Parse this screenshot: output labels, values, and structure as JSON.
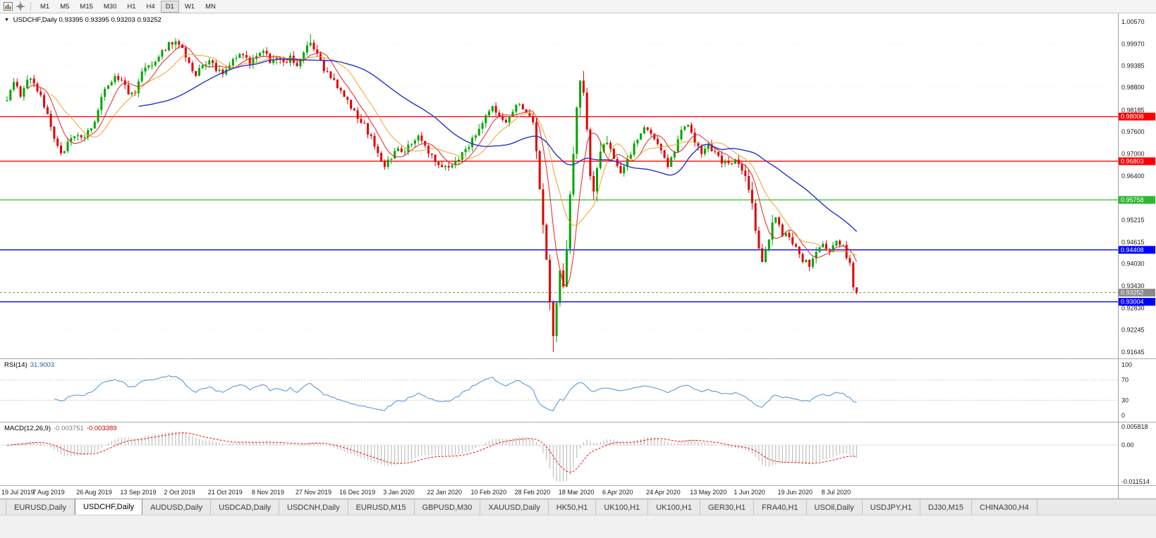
{
  "toolbar": {
    "icons": [
      {
        "name": "chart-window-icon"
      },
      {
        "name": "crosshair-icon"
      }
    ],
    "timeframes": [
      {
        "label": "M1",
        "active": false
      },
      {
        "label": "M5",
        "active": false
      },
      {
        "label": "M15",
        "active": false
      },
      {
        "label": "M30",
        "active": false
      },
      {
        "label": "H1",
        "active": false
      },
      {
        "label": "H4",
        "active": false
      },
      {
        "label": "D1",
        "active": true
      },
      {
        "label": "W1",
        "active": false
      },
      {
        "label": "MN",
        "active": false
      }
    ]
  },
  "chart_header": {
    "symbol": "USDCHF,Daily",
    "ohlc": "0.93395 0.93395 0.93203 0.93252"
  },
  "chart_data": {
    "type": "candlestick",
    "title": "USDCHF,Daily",
    "y_range": [
      0.91645,
      1.0057
    ],
    "num_candles": 253,
    "candles_per_label": 13,
    "up_color": "#00a500",
    "down_color": "#e00000",
    "price_axis_labels": [
      "1.00570",
      "0.99970",
      "0.99385",
      "0.98800",
      "0.98185",
      "0.97600",
      "0.97000",
      "0.96400",
      "0.95800",
      "0.95215",
      "0.94615",
      "0.94030",
      "0.93430",
      "0.92830",
      "0.92245",
      "0.91645"
    ],
    "date_labels": [
      "19 Jul 2019",
      "7 Aug 2019",
      "26 Aug 2019",
      "13 Sep 2019",
      "2 Oct 2019",
      "21 Oct 2019",
      "8 Nov 2019",
      "27 Nov 2019",
      "16 Dec 2019",
      "3 Jan 2020",
      "22 Jan 2020",
      "10 Feb 2020",
      "28 Feb 2020",
      "18 Mar 2020",
      "6 Apr 2020",
      "24 Apr 2020",
      "13 May 2020",
      "1 Jun 2020",
      "19 Jun 2020",
      "8 Jul 2020"
    ],
    "horizontal_lines": [
      {
        "price": 0.98008,
        "label": "0.98008",
        "color": "#ff0000"
      },
      {
        "price": 0.96803,
        "label": "0.96803",
        "color": "#ff0000"
      },
      {
        "price": 0.95758,
        "label": "0.95758",
        "color": "#2db82d"
      },
      {
        "price": 0.94408,
        "label": "0.94408",
        "color": "#0000ff"
      },
      {
        "price": 0.93004,
        "label": "0.93004",
        "color": "#0000ff"
      }
    ],
    "current_price": {
      "value": 0.93252,
      "label": "0.93252"
    },
    "last_candle": {
      "open": 0.93395,
      "high": 0.93395,
      "low": 0.93203,
      "close": 0.93252
    },
    "moving_averages": [
      {
        "period": 7,
        "color": "#e42222",
        "width": 1
      },
      {
        "period": 14,
        "color": "#efa12c",
        "width": 1
      },
      {
        "period": 40,
        "color": "#2334cc",
        "width": 1.4
      }
    ],
    "close_anchors": [
      [
        0,
        0.9852
      ],
      [
        2,
        0.9888
      ],
      [
        4,
        0.9862
      ],
      [
        6,
        0.9906
      ],
      [
        8,
        0.9892
      ],
      [
        10,
        0.9858
      ],
      [
        12,
        0.98
      ],
      [
        14,
        0.9745
      ],
      [
        16,
        0.9702
      ],
      [
        18,
        0.9726
      ],
      [
        20,
        0.9748
      ],
      [
        22,
        0.9738
      ],
      [
        24,
        0.9762
      ],
      [
        26,
        0.9786
      ],
      [
        28,
        0.9848
      ],
      [
        30,
        0.9888
      ],
      [
        32,
        0.991
      ],
      [
        34,
        0.9896
      ],
      [
        36,
        0.9862
      ],
      [
        38,
        0.9872
      ],
      [
        40,
        0.9916
      ],
      [
        42,
        0.9936
      ],
      [
        44,
        0.9956
      ],
      [
        46,
        0.9976
      ],
      [
        48,
        0.9998
      ],
      [
        50,
        1.0004
      ],
      [
        52,
        0.9986
      ],
      [
        54,
        0.9942
      ],
      [
        56,
        0.9912
      ],
      [
        58,
        0.994
      ],
      [
        60,
        0.9956
      ],
      [
        62,
        0.993
      ],
      [
        64,
        0.9912
      ],
      [
        66,
        0.994
      ],
      [
        68,
        0.9958
      ],
      [
        70,
        0.9972
      ],
      [
        72,
        0.994
      ],
      [
        74,
        0.9958
      ],
      [
        76,
        0.9986
      ],
      [
        78,
        0.995
      ],
      [
        80,
        0.9966
      ],
      [
        82,
        0.994
      ],
      [
        84,
        0.9958
      ],
      [
        86,
        0.9942
      ],
      [
        88,
        0.9972
      ],
      [
        90,
        1.0
      ],
      [
        92,
        0.9968
      ],
      [
        94,
        0.9928
      ],
      [
        96,
        0.9906
      ],
      [
        98,
        0.988
      ],
      [
        100,
        0.9852
      ],
      [
        102,
        0.983
      ],
      [
        104,
        0.9792
      ],
      [
        106,
        0.9776
      ],
      [
        108,
        0.9742
      ],
      [
        110,
        0.9706
      ],
      [
        112,
        0.9668
      ],
      [
        114,
        0.9692
      ],
      [
        116,
        0.9716
      ],
      [
        118,
        0.9708
      ],
      [
        120,
        0.9728
      ],
      [
        122,
        0.9748
      ],
      [
        124,
        0.9722
      ],
      [
        126,
        0.9692
      ],
      [
        128,
        0.9668
      ],
      [
        130,
        0.966
      ],
      [
        132,
        0.9672
      ],
      [
        134,
        0.969
      ],
      [
        136,
        0.9712
      ],
      [
        138,
        0.9738
      ],
      [
        140,
        0.9772
      ],
      [
        142,
        0.98
      ],
      [
        144,
        0.9822
      ],
      [
        146,
        0.9808
      ],
      [
        148,
        0.9782
      ],
      [
        150,
        0.9822
      ],
      [
        152,
        0.9838
      ],
      [
        154,
        0.9812
      ],
      [
        156,
        0.9782
      ],
      [
        157,
        0.97
      ],
      [
        158,
        0.961
      ],
      [
        159,
        0.952
      ],
      [
        160,
        0.94
      ],
      [
        161,
        0.929
      ],
      [
        162,
        0.9218
      ],
      [
        163,
        0.931
      ],
      [
        164,
        0.9388
      ],
      [
        165,
        0.9352
      ],
      [
        166,
        0.9458
      ],
      [
        167,
        0.958
      ],
      [
        168,
        0.97
      ],
      [
        169,
        0.9822
      ],
      [
        170,
        0.9895
      ],
      [
        171,
        0.9862
      ],
      [
        172,
        0.9758
      ],
      [
        173,
        0.9648
      ],
      [
        174,
        0.9608
      ],
      [
        175,
        0.9656
      ],
      [
        176,
        0.97
      ],
      [
        178,
        0.9728
      ],
      [
        180,
        0.969
      ],
      [
        182,
        0.9652
      ],
      [
        184,
        0.9688
      ],
      [
        186,
        0.9722
      ],
      [
        188,
        0.9758
      ],
      [
        190,
        0.9772
      ],
      [
        192,
        0.9738
      ],
      [
        194,
        0.9708
      ],
      [
        196,
        0.9668
      ],
      [
        198,
        0.9712
      ],
      [
        200,
        0.9762
      ],
      [
        202,
        0.9772
      ],
      [
        204,
        0.9738
      ],
      [
        206,
        0.9708
      ],
      [
        208,
        0.9722
      ],
      [
        210,
        0.9708
      ],
      [
        212,
        0.9682
      ],
      [
        214,
        0.9668
      ],
      [
        216,
        0.9692
      ],
      [
        218,
        0.9658
      ],
      [
        220,
        0.9602
      ],
      [
        221,
        0.956
      ],
      [
        222,
        0.95
      ],
      [
        223,
        0.9442
      ],
      [
        224,
        0.9398
      ],
      [
        225,
        0.9428
      ],
      [
        226,
        0.9476
      ],
      [
        227,
        0.9518
      ],
      [
        228,
        0.953
      ],
      [
        229,
        0.9508
      ],
      [
        230,
        0.9478
      ],
      [
        231,
        0.9492
      ],
      [
        232,
        0.947
      ],
      [
        234,
        0.9442
      ],
      [
        236,
        0.9415
      ],
      [
        238,
        0.9398
      ],
      [
        240,
        0.9428
      ],
      [
        242,
        0.9452
      ],
      [
        244,
        0.9438
      ],
      [
        246,
        0.9462
      ],
      [
        248,
        0.9448
      ],
      [
        249,
        0.9422
      ],
      [
        250,
        0.9398
      ],
      [
        251,
        0.934
      ],
      [
        252,
        0.93252
      ]
    ],
    "indicators": {
      "rsi": {
        "label": "RSI(14)",
        "value": "31.9003",
        "period": 14,
        "levels": [
          100,
          70,
          30,
          0
        ],
        "color": "#5b9bd5"
      },
      "macd": {
        "label": "MACD(12,26,9)",
        "value_main": "-0.003751",
        "value_signal": "-0.003389",
        "fast": 12,
        "slow": 26,
        "signal": 9,
        "axis_labels": [
          "0.005818",
          "0.00",
          "-0.011514"
        ],
        "histogram_color": "#b4b4b4",
        "signal_color": "#ee1111"
      }
    }
  },
  "tabs": {
    "items": [
      {
        "label": "EURUSD,Daily",
        "active": false
      },
      {
        "label": "USDCHF,Daily",
        "active": true
      },
      {
        "label": "AUDUSD,Daily",
        "active": false
      },
      {
        "label": "USDCAD,Daily",
        "active": false
      },
      {
        "label": "USDCNH,Daily",
        "active": false
      },
      {
        "label": "EURUSD,M15",
        "active": false
      },
      {
        "label": "GBPUSD,M30",
        "active": false
      },
      {
        "label": "XAUUSD,Daily",
        "active": false
      },
      {
        "label": "HK50,H1",
        "active": false
      },
      {
        "label": "UK100,H1",
        "active": false
      },
      {
        "label": "UK100,H1",
        "active": false
      },
      {
        "label": "GER30,H1",
        "active": false
      },
      {
        "label": "FRA40,H1",
        "active": false
      },
      {
        "label": "USOil,Daily",
        "active": false
      },
      {
        "label": "USDJPY,H1",
        "active": false
      },
      {
        "label": "DJ30,M15",
        "active": false
      },
      {
        "label": "CHINA300,H4",
        "active": false
      }
    ]
  }
}
